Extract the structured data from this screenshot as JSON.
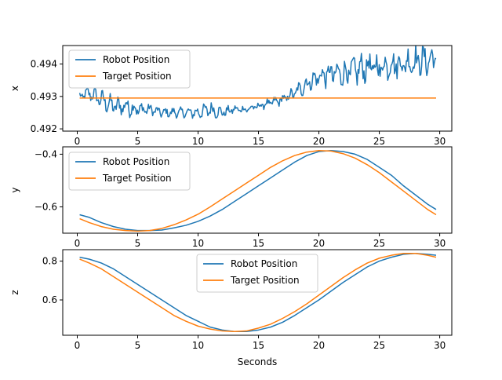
{
  "colors": {
    "robot": "#1f77b4",
    "target": "#ff7f0e",
    "axes": "#000000",
    "legend_border": "#cccccc"
  },
  "chart_data": [
    {
      "type": "line",
      "xlabel": "",
      "ylabel": "x",
      "xlim": [
        -1.2,
        31.0
      ],
      "ylim": [
        0.49193,
        0.49457
      ],
      "xticks": [
        0,
        5,
        10,
        15,
        20,
        25,
        30
      ],
      "xtick_labels": [
        "0",
        "5",
        "10",
        "15",
        "20",
        "25",
        "30"
      ],
      "yticks": [
        0.492,
        0.493,
        0.494
      ],
      "ytick_labels": [
        "0.492",
        "0.493",
        "0.494"
      ],
      "legend": {
        "position": "upper-left",
        "entries": [
          "Robot Position",
          "Target Position"
        ]
      },
      "grid": false,
      "series": [
        {
          "name": "Robot Position",
          "color": "#1f77b4",
          "x": [
            0.2,
            1.0,
            2.0,
            3.0,
            4.0,
            5.0,
            6.0,
            7.0,
            8.0,
            9.0,
            10.0,
            11.0,
            12.0,
            13.0,
            14.0,
            15.0,
            16.0,
            17.0,
            18.0,
            19.0,
            20.0,
            21.0,
            22.0,
            23.0,
            24.0,
            25.0,
            26.0,
            27.0,
            28.0,
            29.0,
            29.7
          ],
          "y": [
            0.493,
            0.4931,
            0.4929,
            0.4927,
            0.4927,
            0.4926,
            0.4926,
            0.4925,
            0.4925,
            0.4925,
            0.4925,
            0.4926,
            0.4925,
            0.4926,
            0.4926,
            0.4927,
            0.4928,
            0.4929,
            0.4931,
            0.4934,
            0.4936,
            0.4937,
            0.4937,
            0.4938,
            0.4939,
            0.4939,
            0.494,
            0.494,
            0.4941,
            0.4941,
            0.4942
          ],
          "noise": [
            0.00018,
            0.00025,
            0.00035,
            0.00035,
            0.00035,
            0.0003,
            0.0002,
            0.00018,
            0.00018,
            0.00018,
            0.00022,
            0.0003,
            0.0002,
            0.00015,
            0.00015,
            0.00015,
            0.00018,
            0.0002,
            0.00025,
            0.00035,
            0.00035,
            0.0005,
            0.0005,
            0.00055,
            0.00055,
            0.00055,
            0.00055,
            0.00055,
            0.0006,
            0.00055,
            0.00045
          ]
        },
        {
          "name": "Target Position",
          "color": "#ff7f0e",
          "x": [
            0.2,
            29.7
          ],
          "y": [
            0.49295,
            0.49295
          ]
        }
      ]
    },
    {
      "type": "line",
      "xlabel": "",
      "ylabel": "y",
      "xlim": [
        -1.2,
        31.0
      ],
      "ylim": [
        -0.7,
        -0.372
      ],
      "xticks": [
        0,
        5,
        10,
        15,
        20,
        25,
        30
      ],
      "xtick_labels": [
        "0",
        "5",
        "10",
        "15",
        "20",
        "25",
        "30"
      ],
      "yticks": [
        -0.6,
        -0.4
      ],
      "ytick_labels": [
        "−0.6",
        "−0.4"
      ],
      "legend": {
        "position": "upper-left",
        "entries": [
          "Robot Position",
          "Target Position"
        ]
      },
      "grid": false,
      "series": [
        {
          "name": "Robot Position",
          "color": "#1f77b4",
          "x": [
            0.2,
            1.0,
            2.0,
            3.0,
            4.0,
            5.0,
            6.0,
            7.0,
            8.0,
            9.0,
            10.0,
            11.0,
            12.0,
            13.0,
            14.0,
            15.0,
            16.0,
            17.0,
            18.0,
            19.0,
            20.0,
            21.0,
            22.0,
            23.0,
            24.0,
            25.0,
            26.0,
            27.0,
            28.0,
            29.0,
            29.7
          ],
          "y": [
            -0.63,
            -0.64,
            -0.66,
            -0.675,
            -0.685,
            -0.69,
            -0.69,
            -0.688,
            -0.68,
            -0.67,
            -0.655,
            -0.635,
            -0.61,
            -0.58,
            -0.55,
            -0.52,
            -0.49,
            -0.46,
            -0.43,
            -0.405,
            -0.39,
            -0.386,
            -0.39,
            -0.4,
            -0.42,
            -0.45,
            -0.48,
            -0.52,
            -0.555,
            -0.59,
            -0.61
          ]
        },
        {
          "name": "Target Position",
          "color": "#ff7f0e",
          "x": [
            0.2,
            1.0,
            2.0,
            3.0,
            4.0,
            5.0,
            6.0,
            7.0,
            8.0,
            9.0,
            10.0,
            11.0,
            12.0,
            13.0,
            14.0,
            15.0,
            16.0,
            17.0,
            18.0,
            19.0,
            20.0,
            21.0,
            22.0,
            23.0,
            24.0,
            25.0,
            26.0,
            27.0,
            28.0,
            29.0,
            29.7
          ],
          "y": [
            -0.645,
            -0.66,
            -0.675,
            -0.685,
            -0.69,
            -0.692,
            -0.69,
            -0.682,
            -0.668,
            -0.65,
            -0.628,
            -0.6,
            -0.57,
            -0.54,
            -0.51,
            -0.48,
            -0.45,
            -0.425,
            -0.405,
            -0.392,
            -0.386,
            -0.388,
            -0.398,
            -0.415,
            -0.44,
            -0.47,
            -0.505,
            -0.54,
            -0.575,
            -0.61,
            -0.63
          ]
        }
      ]
    },
    {
      "type": "line",
      "xlabel": "Seconds",
      "ylabel": "z",
      "xlim": [
        -1.2,
        31.0
      ],
      "ylim": [
        0.418,
        0.859
      ],
      "xticks": [
        0,
        5,
        10,
        15,
        20,
        25,
        30
      ],
      "xtick_labels": [
        "0",
        "5",
        "10",
        "15",
        "20",
        "25",
        "30"
      ],
      "yticks": [
        0.6,
        0.8
      ],
      "ytick_labels": [
        "0.6",
        "0.8"
      ],
      "legend": {
        "position": "upper-center",
        "entries": [
          "Robot Position",
          "Target Position"
        ]
      },
      "grid": false,
      "series": [
        {
          "name": "Robot Position",
          "color": "#1f77b4",
          "x": [
            0.2,
            1.0,
            2.0,
            3.0,
            4.0,
            5.0,
            6.0,
            7.0,
            8.0,
            9.0,
            10.0,
            11.0,
            12.0,
            13.0,
            14.0,
            15.0,
            16.0,
            17.0,
            18.0,
            19.0,
            20.0,
            21.0,
            22.0,
            23.0,
            24.0,
            25.0,
            26.0,
            27.0,
            28.0,
            29.0,
            29.7
          ],
          "y": [
            0.82,
            0.81,
            0.79,
            0.76,
            0.72,
            0.68,
            0.64,
            0.6,
            0.56,
            0.52,
            0.49,
            0.46,
            0.445,
            0.437,
            0.437,
            0.445,
            0.46,
            0.485,
            0.52,
            0.56,
            0.6,
            0.645,
            0.69,
            0.73,
            0.77,
            0.8,
            0.82,
            0.835,
            0.84,
            0.835,
            0.83
          ]
        },
        {
          "name": "Target Position",
          "color": "#ff7f0e",
          "x": [
            0.2,
            1.0,
            2.0,
            3.0,
            4.0,
            5.0,
            6.0,
            7.0,
            8.0,
            9.0,
            10.0,
            11.0,
            12.0,
            13.0,
            14.0,
            15.0,
            16.0,
            17.0,
            18.0,
            19.0,
            20.0,
            21.0,
            22.0,
            23.0,
            24.0,
            25.0,
            26.0,
            27.0,
            28.0,
            29.0,
            29.7
          ],
          "y": [
            0.81,
            0.79,
            0.76,
            0.72,
            0.68,
            0.64,
            0.6,
            0.56,
            0.52,
            0.49,
            0.465,
            0.45,
            0.44,
            0.437,
            0.44,
            0.455,
            0.475,
            0.505,
            0.54,
            0.58,
            0.625,
            0.67,
            0.715,
            0.755,
            0.79,
            0.815,
            0.83,
            0.84,
            0.84,
            0.83,
            0.82
          ]
        }
      ]
    }
  ]
}
